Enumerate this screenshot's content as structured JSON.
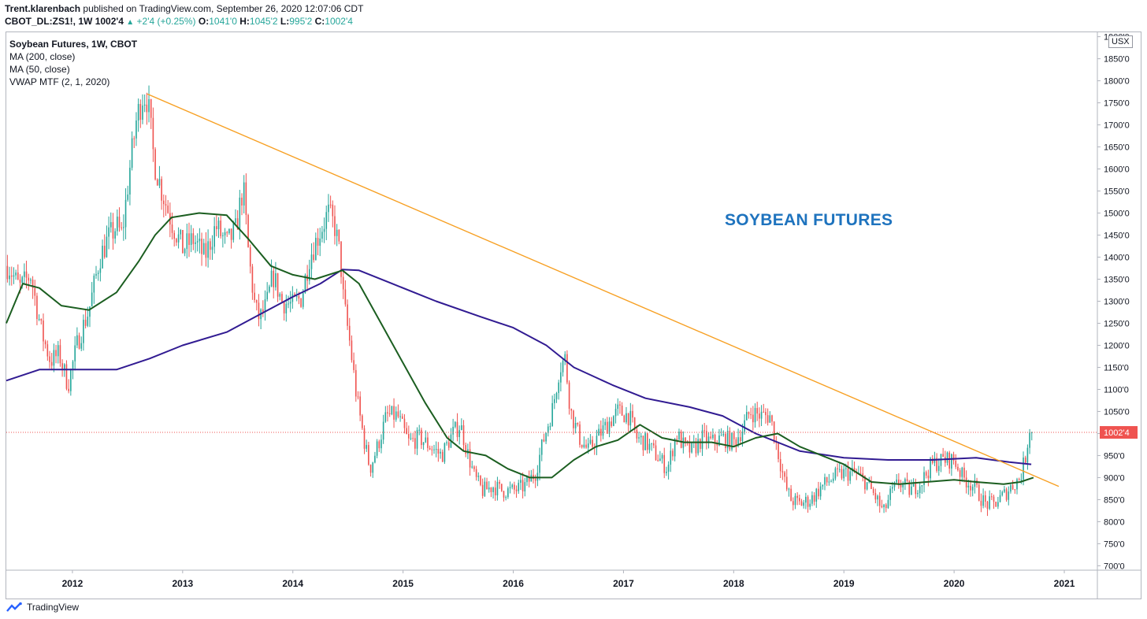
{
  "header": {
    "author": "Trent.klarenbach",
    "published": "published on TradingView.com, September 26, 2020 12:07:06 CDT",
    "symbol_line": "CBOT_DL:ZS1!, 1W",
    "last": "1002'4",
    "change": "+2'4 (+0.25%)",
    "o_label": "O:",
    "o_value": "1041'0",
    "h_label": "H:",
    "h_value": "1045'2",
    "l_label": "L:",
    "l_value": "995'2",
    "c_label": "C:",
    "c_value": "1002'4"
  },
  "legend": {
    "title": "Soybean Futures, 1W, CBOT",
    "studies": [
      "MA (200, close)",
      "MA (50, close)",
      "VWAP MTF (2, 1, 2020)"
    ]
  },
  "currency_badge": "USX",
  "annotation": "SOYBEAN FUTURES",
  "footer": {
    "brand": "TradingView"
  },
  "colors": {
    "up": "#26a69a",
    "down": "#ef5350",
    "ma200": "#311b92",
    "ma50": "#1b5e20",
    "trendline": "#f7a023",
    "annotation": "#1e73be",
    "price_label_bg": "#ef5350"
  },
  "chart_data": {
    "type": "candlestick",
    "title": "Soybean Futures, 1W, CBOT",
    "xlabel": "",
    "ylabel": "",
    "x_ticks": [
      "2012",
      "2013",
      "2014",
      "2015",
      "2016",
      "2017",
      "2018",
      "2019",
      "2020",
      "2021"
    ],
    "y_ticks": [
      "700'0",
      "750'0",
      "800'0",
      "850'0",
      "900'0",
      "950'0",
      "1000'0",
      "1050'0",
      "1100'0",
      "1150'0",
      "1200'0",
      "1250'0",
      "1300'0",
      "1350'0",
      "1400'0",
      "1450'0",
      "1500'0",
      "1550'0",
      "1600'0",
      "1650'0",
      "1700'0",
      "1750'0",
      "1800'0",
      "1850'0",
      "1900'0"
    ],
    "ylim": [
      690,
      1910
    ],
    "xlim": [
      2011.4,
      2021.3
    ],
    "last_price_label": "1002'4",
    "last_price": 1002.5,
    "grid": false,
    "price_anchors": [
      [
        2011.42,
        1380
      ],
      [
        2011.52,
        1330
      ],
      [
        2011.62,
        1360
      ],
      [
        2011.72,
        1230
      ],
      [
        2011.8,
        1165
      ],
      [
        2011.88,
        1180
      ],
      [
        2011.96,
        1110
      ],
      [
        2012.05,
        1210
      ],
      [
        2012.15,
        1280
      ],
      [
        2012.25,
        1400
      ],
      [
        2012.32,
        1440
      ],
      [
        2012.4,
        1470
      ],
      [
        2012.45,
        1450
      ],
      [
        2012.52,
        1600
      ],
      [
        2012.58,
        1710
      ],
      [
        2012.64,
        1770
      ],
      [
        2012.68,
        1760
      ],
      [
        2012.74,
        1620
      ],
      [
        2012.8,
        1560
      ],
      [
        2012.9,
        1480
      ],
      [
        2013.0,
        1420
      ],
      [
        2013.1,
        1440
      ],
      [
        2013.2,
        1400
      ],
      [
        2013.3,
        1470
      ],
      [
        2013.4,
        1430
      ],
      [
        2013.48,
        1460
      ],
      [
        2013.55,
        1560
      ],
      [
        2013.6,
        1400
      ],
      [
        2013.66,
        1280
      ],
      [
        2013.7,
        1260
      ],
      [
        2013.76,
        1290
      ],
      [
        2013.82,
        1360
      ],
      [
        2013.9,
        1300
      ],
      [
        2014.0,
        1290
      ],
      [
        2014.08,
        1310
      ],
      [
        2014.15,
        1400
      ],
      [
        2014.25,
        1460
      ],
      [
        2014.32,
        1500
      ],
      [
        2014.38,
        1470
      ],
      [
        2014.43,
        1400
      ],
      [
        2014.46,
        1300
      ],
      [
        2014.52,
        1200
      ],
      [
        2014.58,
        1080
      ],
      [
        2014.65,
        980
      ],
      [
        2014.7,
        920
      ],
      [
        2014.78,
        980
      ],
      [
        2014.85,
        1040
      ],
      [
        2014.95,
        1040
      ],
      [
        2015.05,
        980
      ],
      [
        2015.15,
        990
      ],
      [
        2015.25,
        970
      ],
      [
        2015.35,
        950
      ],
      [
        2015.45,
        1000
      ],
      [
        2015.52,
        1020
      ],
      [
        2015.58,
        960
      ],
      [
        2015.65,
        900
      ],
      [
        2015.72,
        870
      ],
      [
        2015.82,
        880
      ],
      [
        2015.9,
        870
      ],
      [
        2016.0,
        870
      ],
      [
        2016.1,
        880
      ],
      [
        2016.2,
        910
      ],
      [
        2016.28,
        990
      ],
      [
        2016.36,
        1060
      ],
      [
        2016.42,
        1150
      ],
      [
        2016.47,
        1170
      ],
      [
        2016.52,
        1050
      ],
      [
        2016.6,
        990
      ],
      [
        2016.68,
        960
      ],
      [
        2016.76,
        990
      ],
      [
        2016.85,
        1020
      ],
      [
        2016.95,
        1050
      ],
      [
        2017.05,
        1040
      ],
      [
        2017.12,
        990
      ],
      [
        2017.2,
        980
      ],
      [
        2017.3,
        950
      ],
      [
        2017.4,
        920
      ],
      [
        2017.48,
        1000
      ],
      [
        2017.55,
        970
      ],
      [
        2017.62,
        960
      ],
      [
        2017.72,
        990
      ],
      [
        2017.8,
        980
      ],
      [
        2017.9,
        990
      ],
      [
        2018.0,
        980
      ],
      [
        2018.08,
        1010
      ],
      [
        2018.15,
        1050
      ],
      [
        2018.25,
        1040
      ],
      [
        2018.33,
        1040
      ],
      [
        2018.4,
        960
      ],
      [
        2018.47,
        880
      ],
      [
        2018.52,
        850
      ],
      [
        2018.6,
        840
      ],
      [
        2018.7,
        850
      ],
      [
        2018.8,
        880
      ],
      [
        2018.9,
        900
      ],
      [
        2019.0,
        910
      ],
      [
        2019.1,
        910
      ],
      [
        2019.2,
        890
      ],
      [
        2019.3,
        850
      ],
      [
        2019.36,
        820
      ],
      [
        2019.42,
        860
      ],
      [
        2019.5,
        890
      ],
      [
        2019.6,
        870
      ],
      [
        2019.7,
        890
      ],
      [
        2019.8,
        930
      ],
      [
        2019.9,
        940
      ],
      [
        2020.0,
        940
      ],
      [
        2020.08,
        900
      ],
      [
        2020.18,
        880
      ],
      [
        2020.28,
        840
      ],
      [
        2020.36,
        840
      ],
      [
        2020.45,
        860
      ],
      [
        2020.52,
        880
      ],
      [
        2020.6,
        900
      ],
      [
        2020.65,
        950
      ],
      [
        2020.7,
        1040
      ]
    ],
    "series": [
      {
        "name": "MA (200, close)",
        "points": [
          [
            2011.4,
            1120
          ],
          [
            2011.7,
            1145
          ],
          [
            2012.0,
            1145
          ],
          [
            2012.4,
            1145
          ],
          [
            2012.7,
            1170
          ],
          [
            2013.0,
            1200
          ],
          [
            2013.4,
            1230
          ],
          [
            2013.7,
            1270
          ],
          [
            2014.0,
            1310
          ],
          [
            2014.25,
            1340
          ],
          [
            2014.45,
            1372
          ],
          [
            2014.6,
            1370
          ],
          [
            2014.9,
            1340
          ],
          [
            2015.3,
            1300
          ],
          [
            2015.7,
            1265
          ],
          [
            2016.0,
            1240
          ],
          [
            2016.3,
            1200
          ],
          [
            2016.55,
            1150
          ],
          [
            2016.9,
            1110
          ],
          [
            2017.2,
            1080
          ],
          [
            2017.6,
            1060
          ],
          [
            2017.9,
            1040
          ],
          [
            2018.2,
            1000
          ],
          [
            2018.6,
            960
          ],
          [
            2019.0,
            945
          ],
          [
            2019.4,
            940
          ],
          [
            2019.8,
            940
          ],
          [
            2020.2,
            945
          ],
          [
            2020.5,
            935
          ],
          [
            2020.7,
            930
          ]
        ]
      },
      {
        "name": "MA (50, close)",
        "points": [
          [
            2011.4,
            1250
          ],
          [
            2011.55,
            1340
          ],
          [
            2011.7,
            1330
          ],
          [
            2011.9,
            1290
          ],
          [
            2012.15,
            1280
          ],
          [
            2012.4,
            1320
          ],
          [
            2012.6,
            1390
          ],
          [
            2012.75,
            1450
          ],
          [
            2012.9,
            1490
          ],
          [
            2013.15,
            1500
          ],
          [
            2013.4,
            1495
          ],
          [
            2013.6,
            1440
          ],
          [
            2013.8,
            1380
          ],
          [
            2014.0,
            1360
          ],
          [
            2014.2,
            1350
          ],
          [
            2014.45,
            1370
          ],
          [
            2014.6,
            1340
          ],
          [
            2014.8,
            1250
          ],
          [
            2015.0,
            1160
          ],
          [
            2015.2,
            1070
          ],
          [
            2015.4,
            990
          ],
          [
            2015.55,
            960
          ],
          [
            2015.75,
            950
          ],
          [
            2015.95,
            920
          ],
          [
            2016.15,
            900
          ],
          [
            2016.35,
            900
          ],
          [
            2016.55,
            940
          ],
          [
            2016.75,
            970
          ],
          [
            2016.95,
            985
          ],
          [
            2017.15,
            1020
          ],
          [
            2017.35,
            990
          ],
          [
            2017.55,
            980
          ],
          [
            2017.8,
            980
          ],
          [
            2018.0,
            970
          ],
          [
            2018.2,
            990
          ],
          [
            2018.4,
            1000
          ],
          [
            2018.6,
            970
          ],
          [
            2018.8,
            950
          ],
          [
            2019.0,
            930
          ],
          [
            2019.25,
            890
          ],
          [
            2019.5,
            885
          ],
          [
            2019.75,
            890
          ],
          [
            2020.0,
            895
          ],
          [
            2020.2,
            890
          ],
          [
            2020.45,
            885
          ],
          [
            2020.6,
            890
          ],
          [
            2020.72,
            900
          ]
        ]
      },
      {
        "name": "trendline",
        "points": [
          [
            2012.68,
            1770
          ],
          [
            2020.95,
            880
          ]
        ]
      }
    ]
  }
}
